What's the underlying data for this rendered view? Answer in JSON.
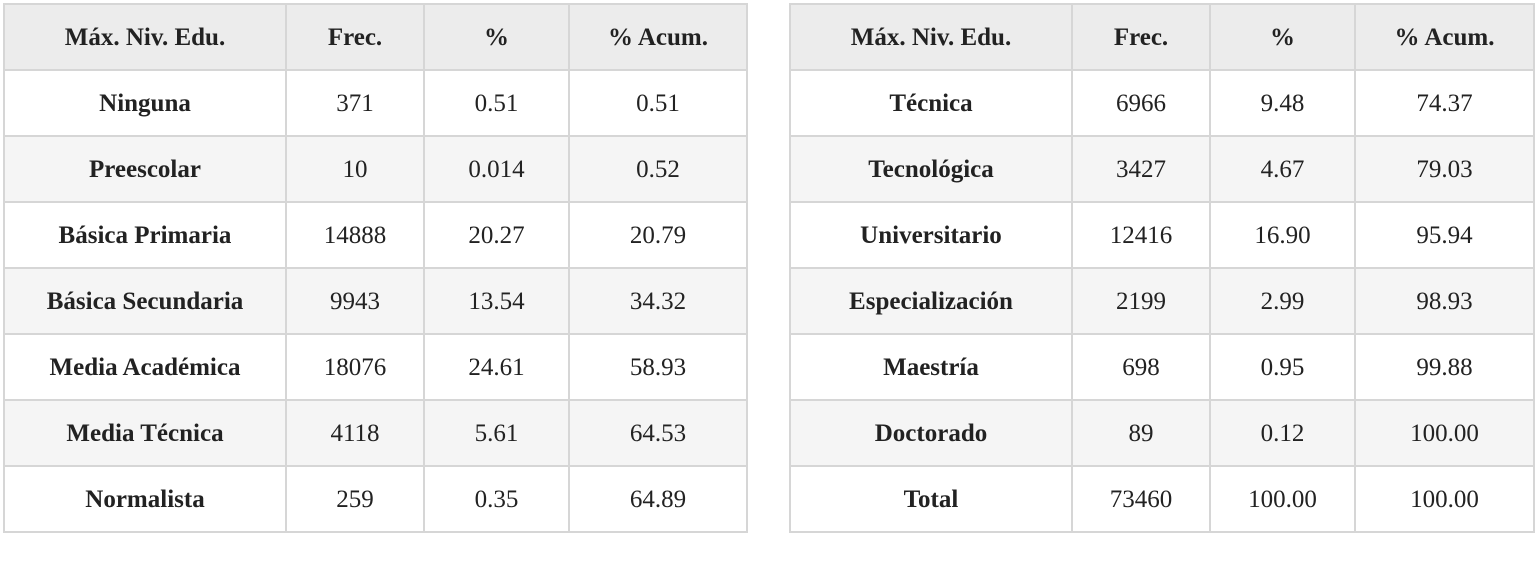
{
  "headers": [
    "Máx. Niv. Edu.",
    "Frec.",
    "%",
    "% Acum."
  ],
  "left_table": {
    "rows": [
      {
        "level": "Ninguna",
        "freq": "371",
        "pct": "0.51",
        "cum": "0.51"
      },
      {
        "level": "Preescolar",
        "freq": "10",
        "pct": "0.014",
        "cum": "0.52"
      },
      {
        "level": "Básica Primaria",
        "freq": "14888",
        "pct": "20.27",
        "cum": "20.79"
      },
      {
        "level": "Básica Secundaria",
        "freq": "9943",
        "pct": "13.54",
        "cum": "34.32"
      },
      {
        "level": "Media Académica",
        "freq": "18076",
        "pct": "24.61",
        "cum": "58.93"
      },
      {
        "level": "Media Técnica",
        "freq": "4118",
        "pct": "5.61",
        "cum": "64.53"
      },
      {
        "level": "Normalista",
        "freq": "259",
        "pct": "0.35",
        "cum": "64.89"
      }
    ]
  },
  "right_table": {
    "rows": [
      {
        "level": "Técnica",
        "freq": "6966",
        "pct": "9.48",
        "cum": "74.37"
      },
      {
        "level": "Tecnológica",
        "freq": "3427",
        "pct": "4.67",
        "cum": "79.03"
      },
      {
        "level": "Universitario",
        "freq": "12416",
        "pct": "16.90",
        "cum": "95.94"
      },
      {
        "level": "Especialización",
        "freq": "2199",
        "pct": "2.99",
        "cum": "98.93"
      },
      {
        "level": "Maestría",
        "freq": "698",
        "pct": "0.95",
        "cum": "99.88"
      },
      {
        "level": "Doctorado",
        "freq": "89",
        "pct": "0.12",
        "cum": "100.00"
      },
      {
        "level": "Total",
        "freq": "73460",
        "pct": "100.00",
        "cum": "100.00"
      }
    ]
  }
}
